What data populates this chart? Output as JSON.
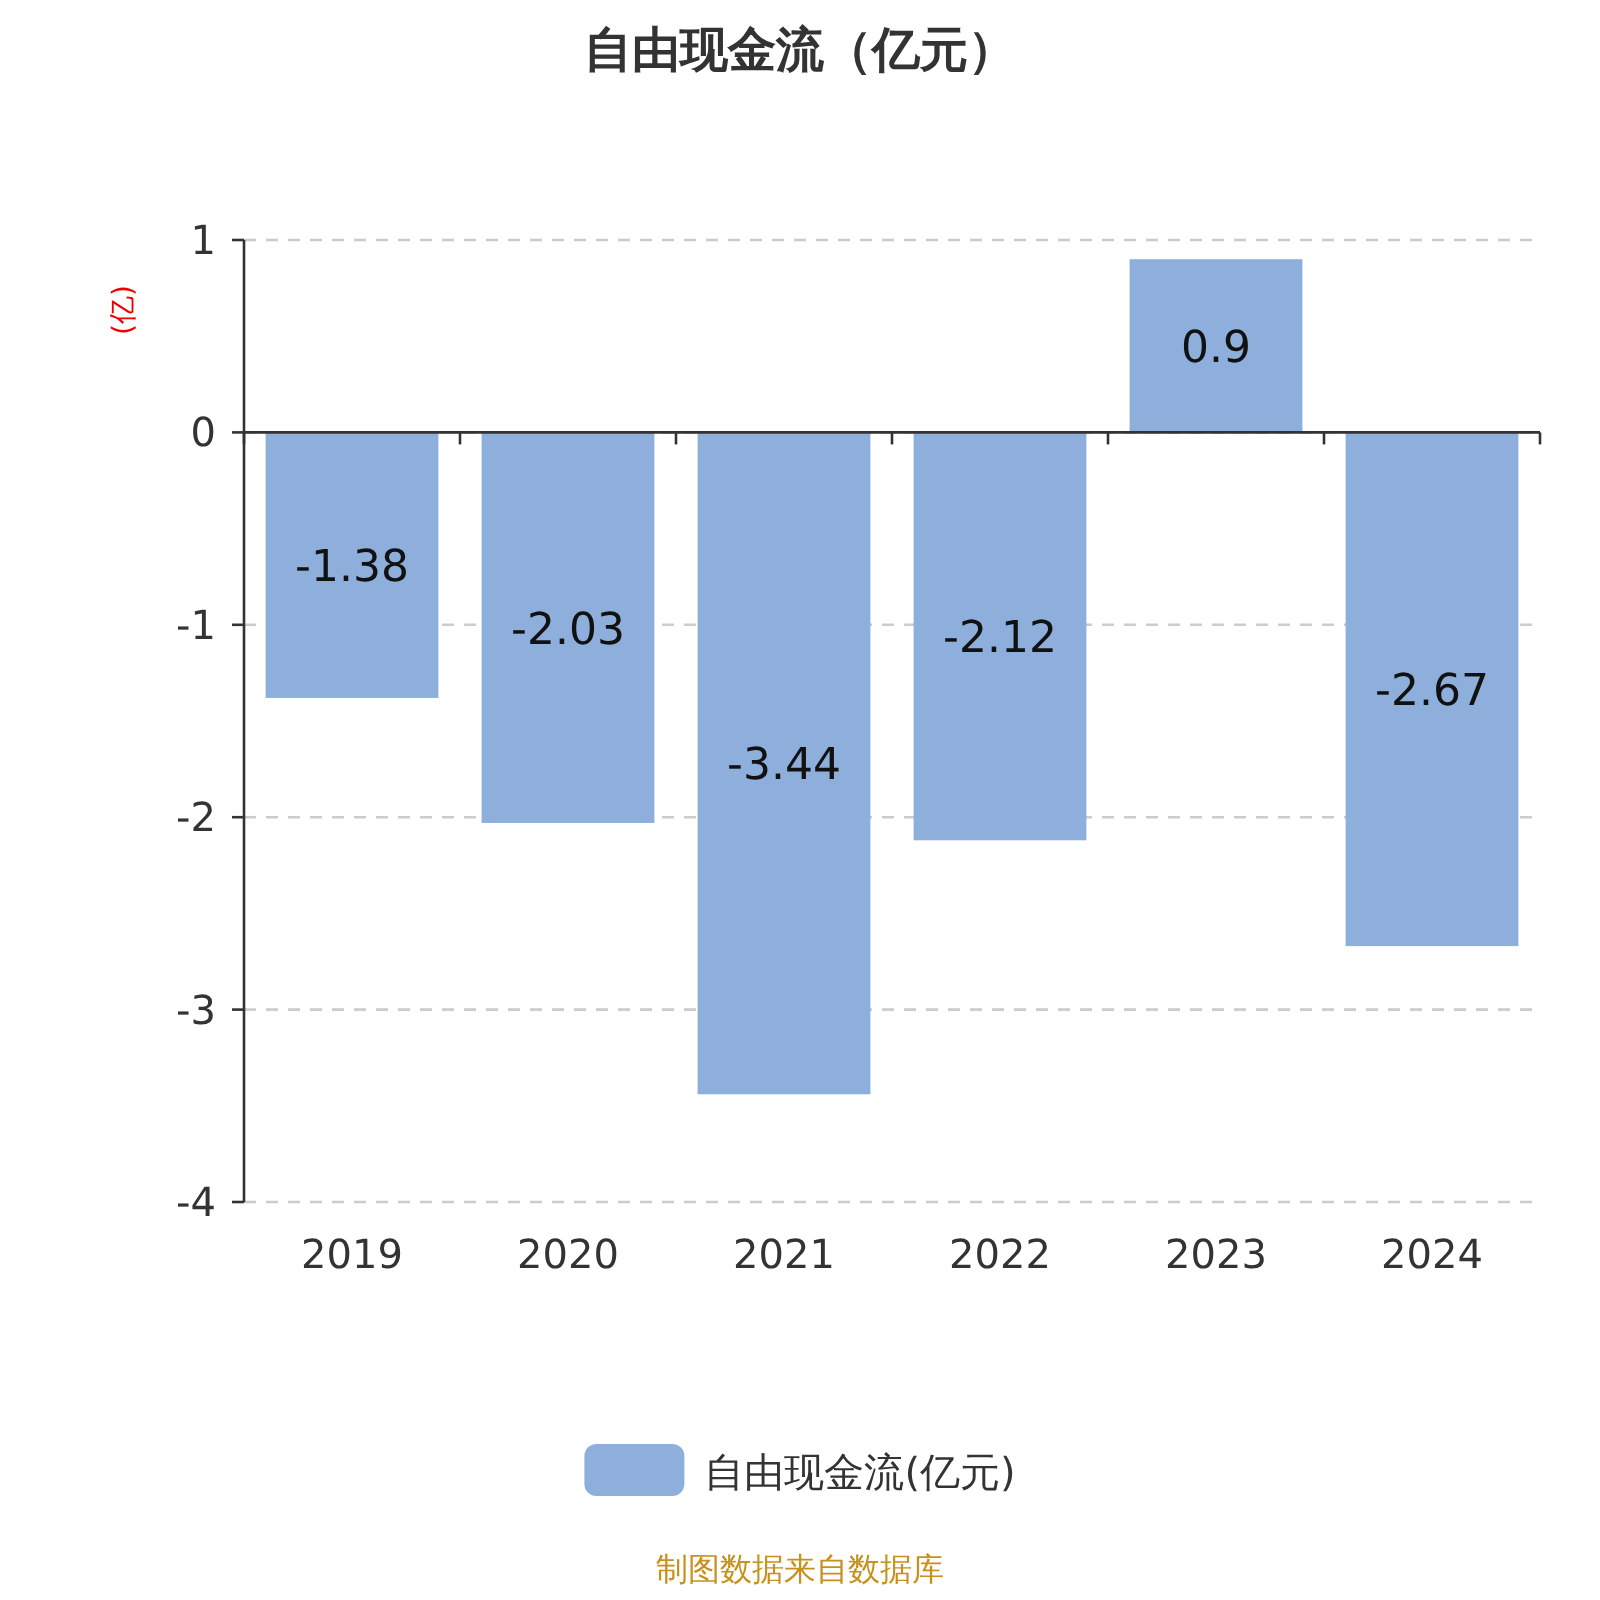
{
  "chart_data": {
    "type": "bar",
    "title": "自由现金流（亿元）",
    "ylabel": "(亿)",
    "categories": [
      "2019",
      "2020",
      "2021",
      "2022",
      "2023",
      "2024"
    ],
    "series": [
      {
        "name": "自由现金流(亿元)",
        "color": "#8eaedb",
        "values": [
          -1.38,
          -2.03,
          -3.44,
          -2.12,
          0.9,
          -2.67
        ]
      }
    ],
    "ylim": [
      -4,
      1
    ],
    "yticks": [
      -4,
      -3,
      -2,
      -1,
      0,
      1
    ],
    "grid": "y",
    "legend": "bottom",
    "data_labels": true,
    "annotations": [
      "制图数据来自数据库"
    ]
  }
}
